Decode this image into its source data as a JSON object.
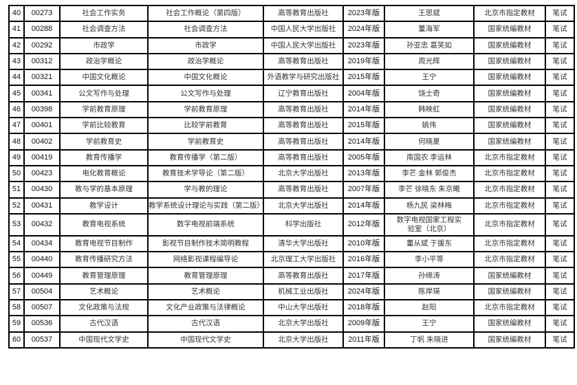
{
  "rows": [
    {
      "no": "40",
      "code": "00273",
      "course": "社会工作实务",
      "textbook": "社会工作概论（第四版）",
      "publisher": "高等教育出版社",
      "edition": "2023年版",
      "author": "王思斌",
      "type": "北京市指定教材",
      "exam": "笔试"
    },
    {
      "no": "41",
      "code": "00288",
      "course": "社会调查方法",
      "textbook": "社会调查方法",
      "publisher": "中国人民大学出版社",
      "edition": "2024年版",
      "author": "董海军",
      "type": "国家统编教材",
      "exam": "笔试"
    },
    {
      "no": "42",
      "code": "00292",
      "course": "市政学",
      "textbook": "市政学",
      "publisher": "中国人民大学出版社",
      "edition": "2023年版",
      "author": "孙亚忠 葛笑如",
      "type": "国家统编教材",
      "exam": "笔试"
    },
    {
      "no": "43",
      "code": "00312",
      "course": "政治学概论",
      "textbook": "政治学概论",
      "publisher": "高等教育出版社",
      "edition": "2019年版",
      "author": "周光辉",
      "type": "国家统编教材",
      "exam": "笔试"
    },
    {
      "no": "44",
      "code": "00321",
      "course": "中国文化概论",
      "textbook": "中国文化概论",
      "publisher": "外语教学与研究出版社",
      "edition": "2015年版",
      "author": "王宁",
      "type": "国家统编教材",
      "exam": "笔试"
    },
    {
      "no": "45",
      "code": "00341",
      "course": "公文写作与处理",
      "textbook": "公文写作与处理",
      "publisher": "辽宁教育出版社",
      "edition": "2004年版",
      "author": "饶士奇",
      "type": "国家统编教材",
      "exam": "笔试"
    },
    {
      "no": "46",
      "code": "00398",
      "course": "学前教育原理",
      "textbook": "学前教育原理",
      "publisher": "高等教育出版社",
      "edition": "2014年版",
      "author": "韩映虹",
      "type": "国家统编教材",
      "exam": "笔试"
    },
    {
      "no": "47",
      "code": "00401",
      "course": "学前比较教育",
      "textbook": "比较学前教育",
      "publisher": "高等教育出版社",
      "edition": "2015年版",
      "author": "姚伟",
      "type": "国家统编教材",
      "exam": "笔试"
    },
    {
      "no": "48",
      "code": "00402",
      "course": "学前教育史",
      "textbook": "学前教育史",
      "publisher": "高等教育出版社",
      "edition": "2014年版",
      "author": "何晓夏",
      "type": "国家统编教材",
      "exam": "笔试"
    },
    {
      "no": "49",
      "code": "00419",
      "course": "教育传播学",
      "textbook": "教育传播学（第二版）",
      "publisher": "高等教育出版社",
      "edition": "2005年版",
      "author": "南国农 李运林",
      "type": "北京市指定教材",
      "exam": "笔试"
    },
    {
      "no": "50",
      "code": "00423",
      "course": "电化教育概论",
      "textbook": "教育技术学导论（第二版）",
      "publisher": "北京大学出版社",
      "edition": "2013年版",
      "author": "李芒 金林 郭俊杰",
      "type": "北京市指定教材",
      "exam": "笔试"
    },
    {
      "no": "51",
      "code": "00430",
      "course": "教与学的基本原理",
      "textbook": "学与教的理论",
      "publisher": "高等教育出版社",
      "edition": "2007年版",
      "author": "李芒 徐晓东 朱京曦",
      "type": "北京市指定教材",
      "exam": "笔试"
    },
    {
      "no": "52",
      "code": "00431",
      "course": "教学设计",
      "textbook": "教学系统设计理论与实践（第二版）",
      "publisher": "北京大学出版社",
      "edition": "2014年版",
      "author": "杨九民 梁林梅",
      "type": "北京市指定教材",
      "exam": "笔试"
    },
    {
      "no": "53",
      "code": "00432",
      "course": "教育电视系统",
      "textbook": "数字电视前端系统",
      "publisher": "科学出版社",
      "edition": "2012年版",
      "author": "数字电视国家工程实验室（北京）",
      "type": "北京市指定教材",
      "exam": "笔试"
    },
    {
      "no": "54",
      "code": "00434",
      "course": "教育电视节目制作",
      "textbook": "影视节目制作技术简明教程",
      "publisher": "清华大学出版社",
      "edition": "2010年版",
      "author": "董从斌 于援东",
      "type": "北京市指定教材",
      "exam": "笔试"
    },
    {
      "no": "55",
      "code": "00440",
      "course": "教育传播研究方法",
      "textbook": "网络影视课程编导论",
      "publisher": "北京理工大学出版社",
      "edition": "2016年版",
      "author": "李小平等",
      "type": "北京市指定教材",
      "exam": "笔试"
    },
    {
      "no": "56",
      "code": "00449",
      "course": "教育管理原理",
      "textbook": "教育管理原理",
      "publisher": "高等教育出版社",
      "edition": "2017年版",
      "author": "孙绵涛",
      "type": "国家统编教材",
      "exam": "笔试"
    },
    {
      "no": "57",
      "code": "00504",
      "course": "艺术概论",
      "textbook": "艺术概论",
      "publisher": "机械工业出版社",
      "edition": "2024年版",
      "author": "陈岸瑛",
      "type": "国家统编教材",
      "exam": "笔试"
    },
    {
      "no": "58",
      "code": "00507",
      "course": "文化政策与法规",
      "textbook": "文化产业政策与法律概论",
      "publisher": "中山大学出版社",
      "edition": "2018年版",
      "author": "赵阳",
      "type": "北京市指定教材",
      "exam": "笔试"
    },
    {
      "no": "59",
      "code": "00536",
      "course": "古代汉语",
      "textbook": "古代汉语",
      "publisher": "北京大学出版社",
      "edition": "2009年版",
      "author": "王宁",
      "type": "国家统编教材",
      "exam": "笔试"
    },
    {
      "no": "60",
      "code": "00537",
      "course": "中国现代文学史",
      "textbook": "中国现代文学史",
      "publisher": "北京大学出版社",
      "edition": "2011年版",
      "author": "丁帆 朱晓进",
      "type": "国家统编教材",
      "exam": "笔试"
    }
  ]
}
